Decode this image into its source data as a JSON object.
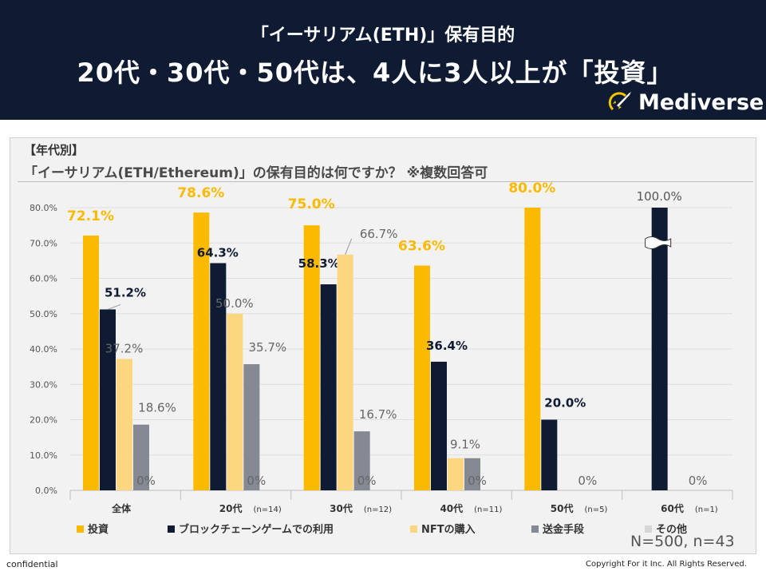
{
  "header": {
    "title_line1": "「イーサリアム(ETH)」保有目的",
    "title_line2": "20代・30代・50代は、4人に3人以上が「投資」",
    "brand": "Mediverse"
  },
  "panel": {
    "section_label": "【年代別】",
    "question": "「イーサリアム(ETH/Ethereum)」の保有目的は何ですか？ ※複数回答可",
    "sample_note": "N=500, n=43"
  },
  "footer": {
    "confidential": "confidential",
    "copyright": "Copyright For it Inc. All Rights Reserved."
  },
  "colors": {
    "header_bg": "#0f1a33",
    "invest": "#fbb900",
    "game": "#0f1a33",
    "nft": "#fcd77f",
    "remit": "#858994",
    "other": "#d6d6d6"
  },
  "chart_data": {
    "type": "bar",
    "title": "「イーサリアム(ETH/Ethereum)」の保有目的は何ですか？ ※複数回答可",
    "xlabel": "",
    "ylabel": "",
    "ylim": [
      0,
      80
    ],
    "yticks": [
      "0.0%",
      "10.0%",
      "20.0%",
      "30.0%",
      "40.0%",
      "50.0%",
      "60.0%",
      "70.0%",
      "80.0%"
    ],
    "categories": [
      {
        "label": "全体",
        "n": ""
      },
      {
        "label": "20代",
        "n": "(n=14)"
      },
      {
        "label": "30代",
        "n": "(n=12)"
      },
      {
        "label": "40代",
        "n": "(n=11)"
      },
      {
        "label": "50代",
        "n": "(n=5)"
      },
      {
        "label": "60代",
        "n": "(n=1)"
      }
    ],
    "series": [
      {
        "name": "投資",
        "color_key": "invest",
        "values": [
          72.1,
          78.6,
          75.0,
          63.6,
          80.0,
          0
        ],
        "labels": [
          "72.1%",
          "78.6%",
          "75.0%",
          "63.6%",
          "80.0%",
          ""
        ]
      },
      {
        "name": "ブロックチェーンゲームでの利用",
        "color_key": "game",
        "values": [
          51.2,
          64.3,
          58.3,
          36.4,
          20.0,
          100.0
        ],
        "labels": [
          "51.2%",
          "64.3%",
          "58.3%",
          "36.4%",
          "20.0%",
          "100.0%"
        ]
      },
      {
        "name": "NFTの購入",
        "color_key": "nft",
        "values": [
          37.2,
          50.0,
          66.7,
          9.1,
          0,
          0
        ],
        "labels": [
          "37.2%",
          "50.0%",
          "66.7%",
          "9.1%",
          "",
          ""
        ]
      },
      {
        "name": "送金手段",
        "color_key": "remit",
        "values": [
          18.6,
          35.7,
          16.7,
          9.1,
          0,
          0
        ],
        "labels": [
          "18.6%",
          "35.7%",
          "16.7%",
          "",
          "",
          ""
        ]
      },
      {
        "name": "その他",
        "color_key": "other",
        "values": [
          0,
          0,
          0,
          0,
          0,
          0
        ],
        "labels": [
          "0%",
          "0%",
          "0%",
          "0%",
          "0%",
          "0%"
        ]
      }
    ],
    "axis_break": {
      "category_index": 5,
      "series_index": 1
    },
    "legend_position": "bottom"
  }
}
